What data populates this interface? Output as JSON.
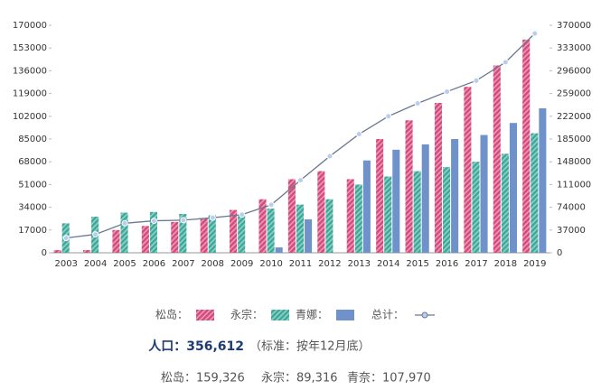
{
  "chart_data": {
    "type": "bar",
    "categories": [
      "2003",
      "2004",
      "2005",
      "2006",
      "2007",
      "2008",
      "2009",
      "2010",
      "2011",
      "2012",
      "2013",
      "2014",
      "2015",
      "2016",
      "2017",
      "2018",
      "2019"
    ],
    "series": [
      {
        "name": "松岛：",
        "color": "#d6497c",
        "hatch": true,
        "values": [
          2000,
          2000,
          17000,
          20000,
          23000,
          26000,
          32000,
          40000,
          55000,
          61000,
          55000,
          85000,
          99000,
          112000,
          124000,
          140000,
          159326
        ]
      },
      {
        "name": "永宗：",
        "color": "#3ba999",
        "hatch": true,
        "values": [
          22000,
          27000,
          30000,
          30500,
          29000,
          28000,
          28000,
          33000,
          36000,
          40000,
          51000,
          57000,
          61000,
          64000,
          68000,
          74000,
          89316
        ]
      },
      {
        "name": "青娜：",
        "color": "#7092cb",
        "hatch": false,
        "values": [
          null,
          null,
          null,
          null,
          null,
          null,
          null,
          4000,
          25000,
          null,
          69000,
          77000,
          81000,
          85000,
          88000,
          97000,
          107970
        ]
      },
      {
        "name": "总计：",
        "color": "#6b7891",
        "type": "line",
        "axis": "y2",
        "marker_color": "#b9cdee",
        "values": [
          24000,
          30000,
          48000,
          52000,
          53000,
          57000,
          62000,
          78000,
          118000,
          157000,
          193000,
          222000,
          243000,
          262000,
          280000,
          310000,
          356612
        ]
      }
    ],
    "ylim": [
      0,
      170000
    ],
    "yticks": [
      0,
      17000,
      34000,
      51000,
      68000,
      85000,
      102000,
      119000,
      136000,
      153000,
      170000
    ],
    "y2lim": [
      0,
      370000
    ],
    "y2ticks": [
      0,
      37000,
      74000,
      111000,
      148000,
      185000,
      222000,
      259000,
      296000,
      333000,
      370000
    ],
    "grid": false,
    "annotations": {
      "total": "人口：356,612",
      "note": "（标准：按年12月底）",
      "breakdown": [
        "松岛：159,326",
        "永宗：89,316",
        "青奈：107,970"
      ]
    }
  }
}
